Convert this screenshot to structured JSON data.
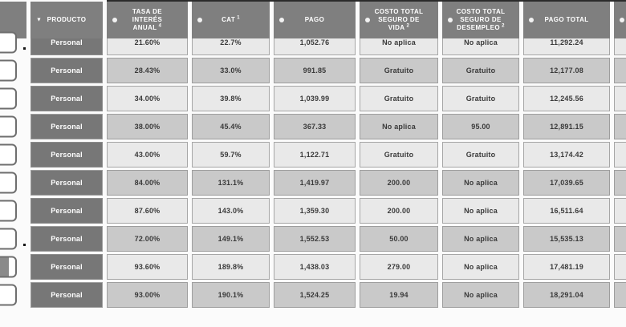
{
  "colors": {
    "header_bg": "#7f7f7f",
    "product_bg": "#777777",
    "row_light": "#e9e9e9",
    "row_dark": "#c9c9c9",
    "strip_light": "#e4e4e4",
    "strip_dark": "#d3d3d3",
    "cell_border": "#a6a6a6",
    "text": "#3a3a3a"
  },
  "table": {
    "columns": [
      {
        "key": "box",
        "lines": [],
        "sup": "",
        "icon": "none"
      },
      {
        "key": "producto",
        "lines": [
          "PRODUCTO"
        ],
        "sup": "",
        "icon": "dropdown"
      },
      {
        "key": "tasa",
        "lines": [
          "TASA DE",
          "INTERÉS",
          "ANUAL"
        ],
        "sup": "4",
        "icon": "sort"
      },
      {
        "key": "cat",
        "lines": [
          "CAT"
        ],
        "sup": "1",
        "icon": "sort"
      },
      {
        "key": "pago",
        "lines": [
          "PAGO"
        ],
        "sup": "",
        "icon": "sort"
      },
      {
        "key": "seguro_vida",
        "lines": [
          "COSTO TOTAL",
          "SEGURO DE",
          "VIDA"
        ],
        "sup": "2",
        "icon": "sort"
      },
      {
        "key": "seguro_desempleo",
        "lines": [
          "COSTO TOTAL",
          "SEGURO DE",
          "DESEMPLEO"
        ],
        "sup": "2",
        "icon": "sort"
      },
      {
        "key": "pago_total",
        "lines": [
          "PAGO TOTAL"
        ],
        "sup": "",
        "icon": "sort"
      },
      {
        "key": "extra",
        "lines": [],
        "sup": "",
        "icon": "sort"
      }
    ],
    "rows": [
      {
        "producto": "Personal",
        "tasa": "21.60%",
        "cat": "22.7%",
        "pago": "1,052.76",
        "seguro_vida": "No aplica",
        "seguro_desempleo": "No aplica",
        "pago_total": "11,292.24",
        "extra": "",
        "marker_dot": true,
        "logo_partial": false
      },
      {
        "producto": "Personal",
        "tasa": "28.43%",
        "cat": "33.0%",
        "pago": "991.85",
        "seguro_vida": "Gratuito",
        "seguro_desempleo": "Gratuito",
        "pago_total": "12,177.08",
        "extra": "",
        "marker_dot": false,
        "logo_partial": false
      },
      {
        "producto": "Personal",
        "tasa": "34.00%",
        "cat": "39.8%",
        "pago": "1,039.99",
        "seguro_vida": "Gratuito",
        "seguro_desempleo": "Gratuito",
        "pago_total": "12,245.56",
        "extra": "",
        "marker_dot": false,
        "logo_partial": false
      },
      {
        "producto": "Personal",
        "tasa": "38.00%",
        "cat": "45.4%",
        "pago": "367.33",
        "seguro_vida": "No aplica",
        "seguro_desempleo": "95.00",
        "pago_total": "12,891.15",
        "extra": "",
        "marker_dot": false,
        "logo_partial": false
      },
      {
        "producto": "Personal",
        "tasa": "43.00%",
        "cat": "59.7%",
        "pago": "1,122.71",
        "seguro_vida": "Gratuito",
        "seguro_desempleo": "Gratuito",
        "pago_total": "13,174.42",
        "extra": "",
        "marker_dot": false,
        "logo_partial": false
      },
      {
        "producto": "Personal",
        "tasa": "84.00%",
        "cat": "131.1%",
        "pago": "1,419.97",
        "seguro_vida": "200.00",
        "seguro_desempleo": "No aplica",
        "pago_total": "17,039.65",
        "extra": "",
        "marker_dot": false,
        "logo_partial": false
      },
      {
        "producto": "Personal",
        "tasa": "87.60%",
        "cat": "143.0%",
        "pago": "1,359.30",
        "seguro_vida": "200.00",
        "seguro_desempleo": "No aplica",
        "pago_total": "16,511.64",
        "extra": "",
        "marker_dot": false,
        "logo_partial": false
      },
      {
        "producto": "Personal",
        "tasa": "72.00%",
        "cat": "149.1%",
        "pago": "1,552.53",
        "seguro_vida": "50.00",
        "seguro_desempleo": "No aplica",
        "pago_total": "15,535.13",
        "extra": "",
        "marker_dot": true,
        "logo_partial": false
      },
      {
        "producto": "Personal",
        "tasa": "93.60%",
        "cat": "189.8%",
        "pago": "1,438.03",
        "seguro_vida": "279.00",
        "seguro_desempleo": "No aplica",
        "pago_total": "17,481.19",
        "extra": "",
        "marker_dot": false,
        "logo_partial": true
      },
      {
        "producto": "Personal",
        "tasa": "93.00%",
        "cat": "190.1%",
        "pago": "1,524.25",
        "seguro_vida": "19.94",
        "seguro_desempleo": "No aplica",
        "pago_total": "18,291.04",
        "extra": "",
        "marker_dot": false,
        "logo_partial": false
      }
    ]
  }
}
